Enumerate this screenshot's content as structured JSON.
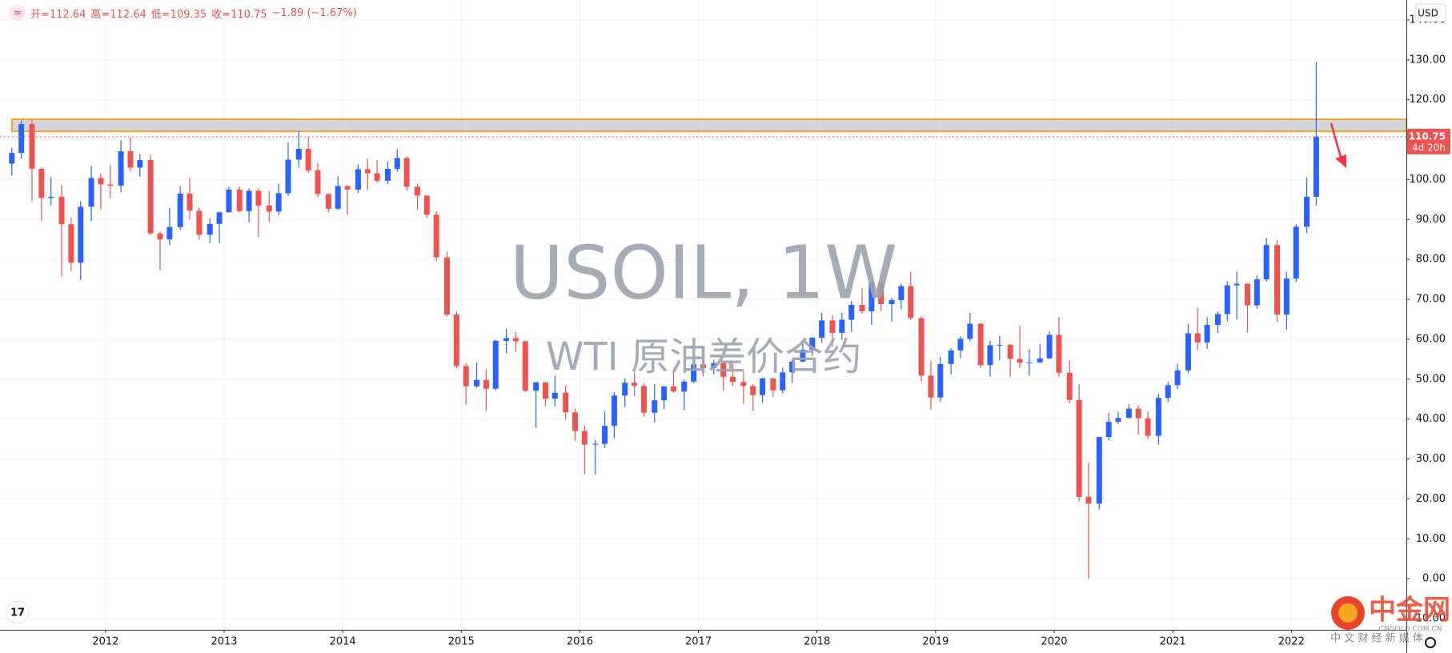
{
  "chart_data": {
    "type": "candlestick",
    "title": "USOIL, 1W",
    "subtitle": "WTI 原油差价合约",
    "legend": [
      "开=112.64",
      "高=112.64",
      "低=109.35",
      "收=110.75",
      "−1.89 (−1.67%)"
    ],
    "currency": "USD",
    "countdown": "4d 20h",
    "current_price": 110.75,
    "zone": [
      112.1,
      115.1
    ],
    "up_color": "#2962ff",
    "down_color": "#ef5350",
    "zone_color": "#f7a427",
    "grid": true,
    "brand": {
      "name": "中金网",
      "site": "CNGOLD.COM.CN",
      "slogan": "中 文 财 经 新 媒 体"
    },
    "xlim": [
      2011.11,
      2022.97
    ],
    "xticks": [
      2012,
      2013,
      2014,
      2015,
      2016,
      2017,
      2018,
      2019,
      2020,
      2021,
      2022
    ],
    "ylim": [
      -12.8,
      145
    ],
    "yticks": [
      {
        "value": -10,
        "label": "-10.00"
      },
      {
        "value": 0,
        "label": "0.00"
      },
      {
        "value": 10,
        "label": "10.00"
      },
      {
        "value": 20,
        "label": "20.00"
      },
      {
        "value": 30,
        "label": "30.00"
      },
      {
        "value": 40,
        "label": "40.00"
      },
      {
        "value": 50,
        "label": "50.00"
      },
      {
        "value": 60,
        "label": "60.00"
      },
      {
        "value": 70,
        "label": "70.00"
      },
      {
        "value": 80,
        "label": "80.00"
      },
      {
        "value": 90,
        "label": "90.00"
      },
      {
        "value": 100,
        "label": "100.00"
      },
      {
        "value": 110,
        "label": "110.00"
      },
      {
        "value": 120,
        "label": "120.00"
      },
      {
        "value": 130,
        "label": "130.00"
      },
      {
        "value": 140,
        "label": "140.00"
      }
    ],
    "x": [
      2011.21,
      2011.29,
      2011.38,
      2011.46,
      2011.54,
      2011.63,
      2011.71,
      2011.79,
      2011.88,
      2011.96,
      2012.04,
      2012.13,
      2012.21,
      2012.29,
      2012.38,
      2012.46,
      2012.54,
      2012.63,
      2012.71,
      2012.79,
      2012.88,
      2012.96,
      2013.04,
      2013.13,
      2013.21,
      2013.29,
      2013.38,
      2013.46,
      2013.54,
      2013.63,
      2013.71,
      2013.79,
      2013.88,
      2013.96,
      2014.04,
      2014.13,
      2014.21,
      2014.29,
      2014.38,
      2014.46,
      2014.54,
      2014.63,
      2014.71,
      2014.79,
      2014.88,
      2014.96,
      2015.04,
      2015.13,
      2015.21,
      2015.29,
      2015.38,
      2015.46,
      2015.54,
      2015.63,
      2015.71,
      2015.79,
      2015.88,
      2015.96,
      2016.04,
      2016.13,
      2016.21,
      2016.29,
      2016.38,
      2016.46,
      2016.54,
      2016.63,
      2016.71,
      2016.79,
      2016.88,
      2016.96,
      2017.04,
      2017.13,
      2017.21,
      2017.29,
      2017.38,
      2017.46,
      2017.54,
      2017.63,
      2017.71,
      2017.79,
      2017.88,
      2017.96,
      2018.04,
      2018.13,
      2018.21,
      2018.29,
      2018.38,
      2018.46,
      2018.54,
      2018.63,
      2018.71,
      2018.79,
      2018.88,
      2018.96,
      2019.04,
      2019.13,
      2019.21,
      2019.29,
      2019.38,
      2019.46,
      2019.54,
      2019.63,
      2019.71,
      2019.79,
      2019.88,
      2019.96,
      2020.04,
      2020.13,
      2020.21,
      2020.29,
      2020.38,
      2020.46,
      2020.54,
      2020.63,
      2020.71,
      2020.79,
      2020.88,
      2020.96,
      2021.04,
      2021.13,
      2021.21,
      2021.29,
      2021.38,
      2021.46,
      2021.54,
      2021.63,
      2021.71,
      2021.79,
      2021.88,
      2021.96,
      2022.04,
      2022.13,
      2022.21
    ],
    "open": [
      104.0,
      106.7,
      113.9,
      102.7,
      95.4,
      95.7,
      88.8,
      79.2,
      93.2,
      100.4,
      98.8,
      98.5,
      107.1,
      103.0,
      104.9,
      86.5,
      85.0,
      88.1,
      96.5,
      92.2,
      86.2,
      88.9,
      91.8,
      97.5,
      92.1,
      97.2,
      93.5,
      92.0,
      96.6,
      105.0,
      107.7,
      102.3,
      96.4,
      92.7,
      98.4,
      97.5,
      102.6,
      101.6,
      99.7,
      102.7,
      105.4,
      98.2,
      96.0,
      91.2,
      80.5,
      66.2,
      53.3,
      48.2,
      49.8,
      47.6,
      59.6,
      60.3,
      59.5,
      47.1,
      49.2,
      45.1,
      46.6,
      41.7,
      37.0,
      33.6,
      33.8,
      38.3,
      45.9,
      49.1,
      48.3,
      41.6,
      44.7,
      48.2,
      46.9,
      49.4,
      53.7,
      52.8,
      54.0,
      50.6,
      49.3,
      48.3,
      46.0,
      50.2,
      47.2,
      51.7,
      54.4,
      57.4,
      60.4,
      64.7,
      61.6,
      64.9,
      68.6,
      67.0,
      74.2,
      68.8,
      69.8,
      73.3,
      65.3,
      50.9,
      45.4,
      53.8,
      57.2,
      60.1,
      63.9,
      53.5,
      58.5,
      58.6,
      55.1,
      54.1,
      54.2,
      55.2,
      61.1,
      51.6,
      44.8,
      20.5,
      18.8,
      35.5,
      39.3,
      40.3,
      42.6,
      40.2,
      35.8,
      45.3,
      48.5,
      52.2,
      61.5,
      59.2,
      63.6,
      66.3,
      73.5,
      73.9,
      68.5,
      75.0,
      83.6,
      66.2,
      75.2,
      88.2,
      95.7
    ],
    "high": [
      108.0,
      114.8,
      115.0,
      103.0,
      100.6,
      98.6,
      90.5,
      94.6,
      103.4,
      101.6,
      103.7,
      109.9,
      110.6,
      106.3,
      106.2,
      86.9,
      92.9,
      98.3,
      100.4,
      93.0,
      90.3,
      92.0,
      98.2,
      98.2,
      97.8,
      97.8,
      97.1,
      99.0,
      109.3,
      112.2,
      110.7,
      104.1,
      96.5,
      100.8,
      98.6,
      103.8,
      105.2,
      104.9,
      104.5,
      107.7,
      105.8,
      99.0,
      96.0,
      92.0,
      82.0,
      67.0,
      54.0,
      54.2,
      52.5,
      59.9,
      62.6,
      61.8,
      59.7,
      49.3,
      49.3,
      50.9,
      48.4,
      42.6,
      38.4,
      34.8,
      41.9,
      46.8,
      50.2,
      51.7,
      49.0,
      48.8,
      48.4,
      51.9,
      49.9,
      54.5,
      55.2,
      54.9,
      54.6,
      53.8,
      52.0,
      48.8,
      50.4,
      50.2,
      52.9,
      54.8,
      59.1,
      60.5,
      66.6,
      66.0,
      66.6,
      69.6,
      72.9,
      74.5,
      75.3,
      70.4,
      73.9,
      76.9,
      65.8,
      54.6,
      55.6,
      57.8,
      60.7,
      66.6,
      64.1,
      59.6,
      60.9,
      58.8,
      63.4,
      57.5,
      58.7,
      61.9,
      65.6,
      54.7,
      48.7,
      29.1,
      35.6,
      41.6,
      41.8,
      43.7,
      43.4,
      41.9,
      46.3,
      49.3,
      53.9,
      63.8,
      67.9,
      65.5,
      67.0,
      74.5,
      76.9,
      74.0,
      76.0,
      85.4,
      84.9,
      76.9,
      88.8,
      100.5,
      129.4
    ],
    "low": [
      101.0,
      105.2,
      94.6,
      89.6,
      93.5,
      75.7,
      77.1,
      74.9,
      89.6,
      92.5,
      95.4,
      96.8,
      102.1,
      100.7,
      86.1,
      77.3,
      83.6,
      87.4,
      90.0,
      84.9,
      84.1,
      84.1,
      91.8,
      91.8,
      89.3,
      85.6,
      89.4,
      91.1,
      95.9,
      103.0,
      101.7,
      95.6,
      91.8,
      92.4,
      91.2,
      96.6,
      97.4,
      99.2,
      98.9,
      102.0,
      97.2,
      92.5,
      90.4,
      79.5,
      65.7,
      52.7,
      43.6,
      47.8,
      42.0,
      47.1,
      56.5,
      56.8,
      46.7,
      37.8,
      43.2,
      43.2,
      40.0,
      34.5,
      26.2,
      26.1,
      32.7,
      35.2,
      43.0,
      45.8,
      40.6,
      39.2,
      42.5,
      46.6,
      42.2,
      49.0,
      50.7,
      51.2,
      47.1,
      48.2,
      43.8,
      42.1,
      44.1,
      45.6,
      46.4,
      49.1,
      54.2,
      55.8,
      59.1,
      58.1,
      59.9,
      61.8,
      66.4,
      63.6,
      67.0,
      64.4,
      67.6,
      64.8,
      49.4,
      42.4,
      44.4,
      51.2,
      55.3,
      59.5,
      52.8,
      50.6,
      54.7,
      50.5,
      52.8,
      50.9,
      54.0,
      55.0,
      50.6,
      43.9,
      19.3,
      0.0,
      17.3,
      34.7,
      38.7,
      40.2,
      36.1,
      34.9,
      33.6,
      44.2,
      47.5,
      51.5,
      57.3,
      57.6,
      61.5,
      64.5,
      65.0,
      61.7,
      67.6,
      74.4,
      64.4,
      62.4,
      74.3,
      86.6,
      93.5
    ],
    "close": [
      106.7,
      113.9,
      102.7,
      95.4,
      95.7,
      88.8,
      79.2,
      93.2,
      100.4,
      98.8,
      98.5,
      107.1,
      103.0,
      104.9,
      86.5,
      85.0,
      88.1,
      96.5,
      92.2,
      86.2,
      88.9,
      91.8,
      97.5,
      92.1,
      97.2,
      93.5,
      92.0,
      96.6,
      105.0,
      107.7,
      102.3,
      96.4,
      92.7,
      98.4,
      97.5,
      102.6,
      101.6,
      99.7,
      102.7,
      105.4,
      98.2,
      96.0,
      91.2,
      80.5,
      66.2,
      53.3,
      48.2,
      49.8,
      47.6,
      59.6,
      60.3,
      59.5,
      47.1,
      49.2,
      45.1,
      46.6,
      41.7,
      37.0,
      33.6,
      33.8,
      38.3,
      45.9,
      49.1,
      48.3,
      41.6,
      44.7,
      48.2,
      46.9,
      49.4,
      53.7,
      52.8,
      54.0,
      50.6,
      49.3,
      48.3,
      46.0,
      50.2,
      47.2,
      51.7,
      54.4,
      57.4,
      60.4,
      64.7,
      61.6,
      64.9,
      68.6,
      67.0,
      74.2,
      68.8,
      69.8,
      73.3,
      65.3,
      50.9,
      45.4,
      53.8,
      57.2,
      60.1,
      63.9,
      53.5,
      58.5,
      58.6,
      55.1,
      54.1,
      54.2,
      55.2,
      61.1,
      51.6,
      44.8,
      20.5,
      18.8,
      35.5,
      39.3,
      40.3,
      42.6,
      40.2,
      35.8,
      45.3,
      48.5,
      52.2,
      61.5,
      59.2,
      63.6,
      66.3,
      73.5,
      73.9,
      68.5,
      75.0,
      83.6,
      66.2,
      75.2,
      88.2,
      95.7,
      110.75
    ]
  }
}
